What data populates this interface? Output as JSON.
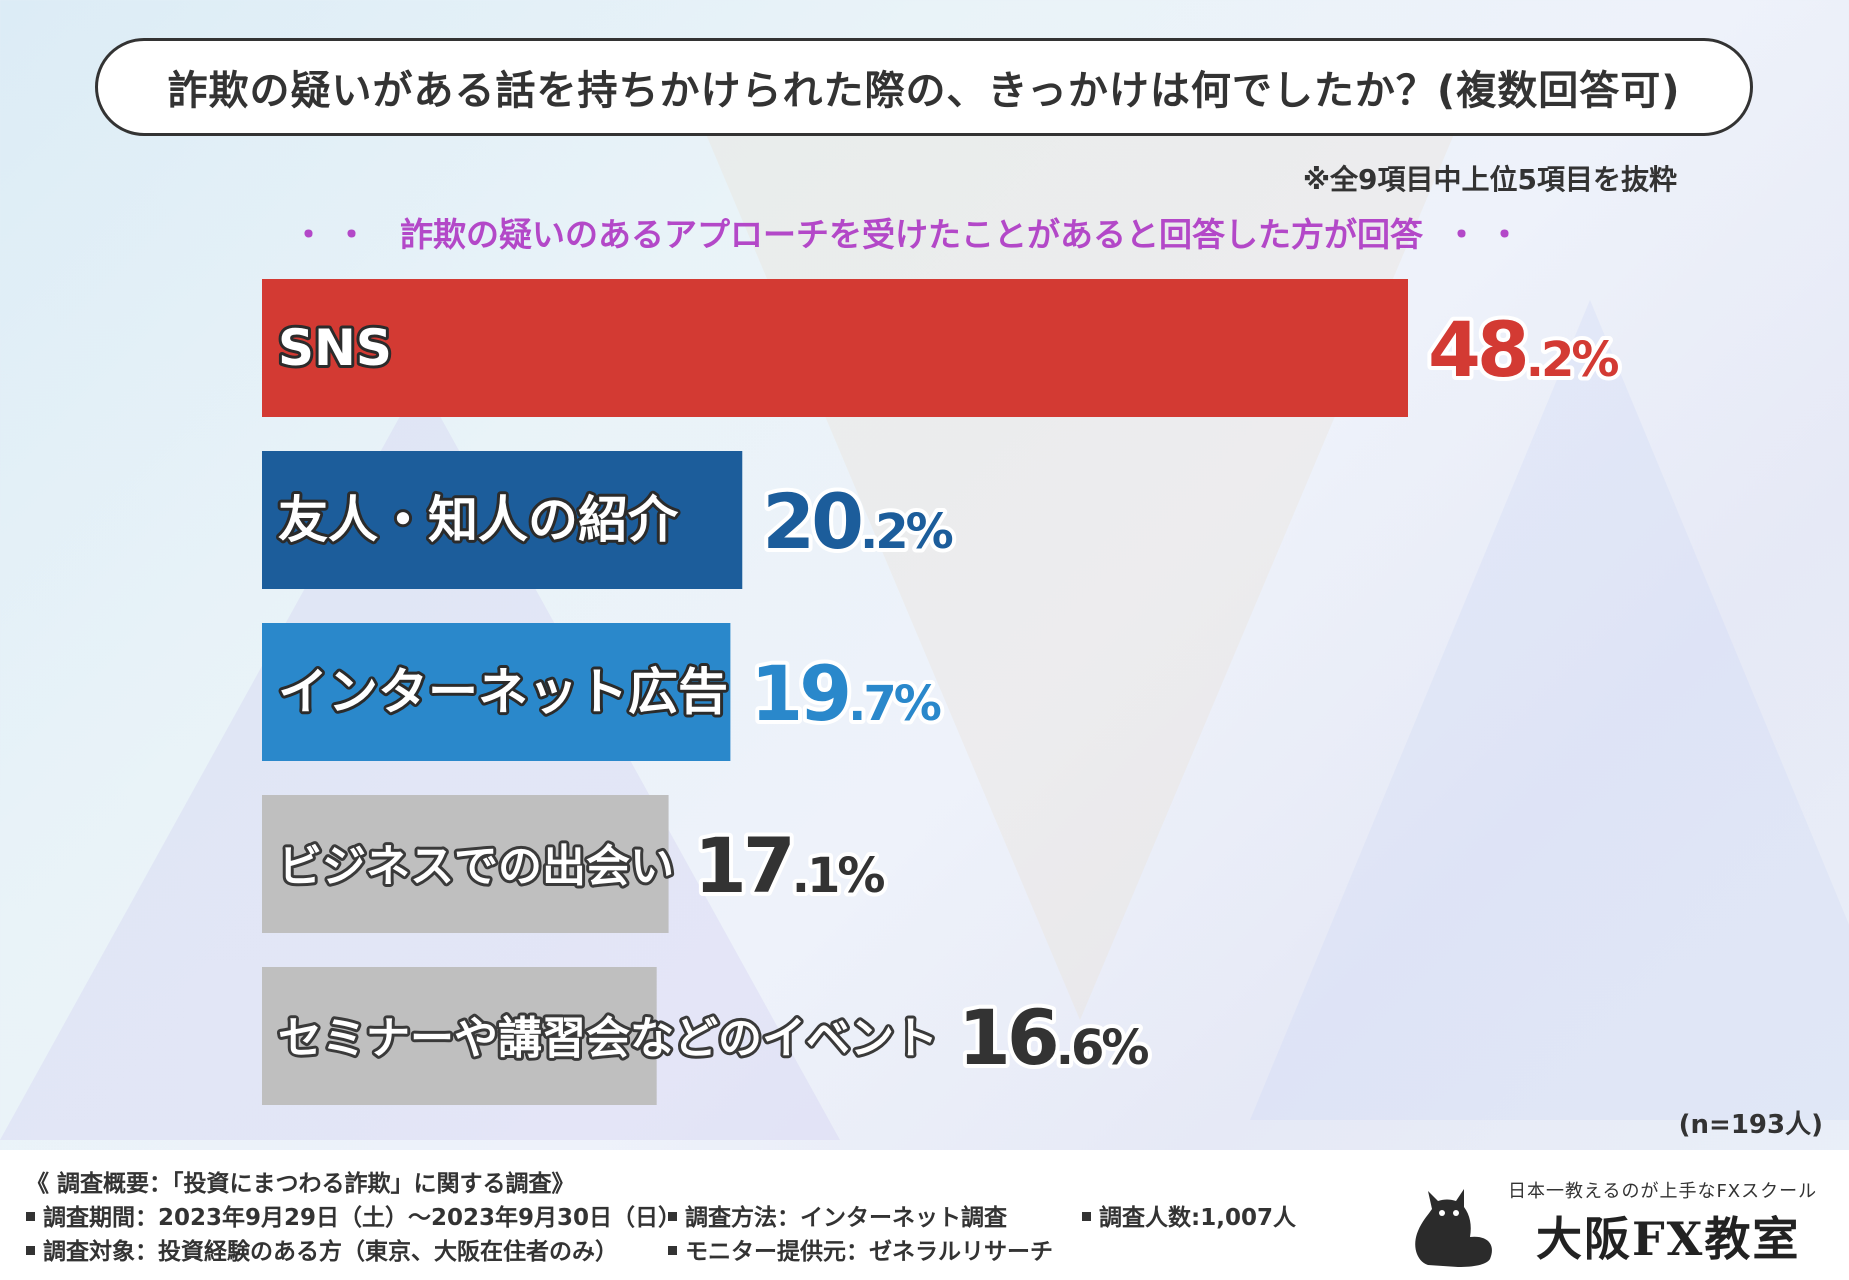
{
  "title": "詐欺の疑いがある話を持ちかけられた際の、きっかけは何でしたか？(複数回答可)",
  "note": "※全9項目中上位5項目を抜粋",
  "subtitle": {
    "dots": "・・",
    "text": "詐欺の疑いのあるアプローチを受けたことがあると回答した方が回答"
  },
  "sample_size": "(n=193人)",
  "colors": {
    "sns": "#d33a33",
    "friend": "#1c5d9b",
    "internet": "#2a88cb",
    "gray": "#bfbfbf"
  },
  "chart_data": {
    "type": "bar",
    "orientation": "horizontal",
    "title": "詐欺の疑いがある話を持ちかけられた際の、きっかけは何でしたか？(複数回答可)",
    "unit": "%",
    "categories": [
      "SNS",
      "友人・知人の紹介",
      "インターネット広告",
      "ビジネスでの出会い",
      "セミナーや講習会などのイベント"
    ],
    "values": [
      48.2,
      20.2,
      19.7,
      17.1,
      16.6
    ],
    "bar_colors": [
      "#d33a33",
      "#1c5d9b",
      "#2a88cb",
      "#bfbfbf",
      "#bfbfbf"
    ],
    "value_colors": [
      "#d33a33",
      "#1c5d9b",
      "#2a88cb",
      "#333333",
      "#333333"
    ],
    "grid": false,
    "legend": "none"
  },
  "footer": {
    "survey_title": "《 調査概要：「投資にまつわる詐欺」に関する調査》",
    "period": "調査期間：2023年9月29日（土）～2023年9月30日（日）",
    "method": "調査方法：インターネット調査",
    "count": "調査人数:1,007人",
    "target": "調査対象：投資経験のある方（東京、大阪在住者のみ）",
    "provider": "モニター提供元：ゼネラルリサーチ",
    "logo_tagline": "日本一教えるのが上手なFXスクール",
    "logo_name": "大阪FX教室",
    "logo_icon": "cat-silhouette-icon"
  }
}
